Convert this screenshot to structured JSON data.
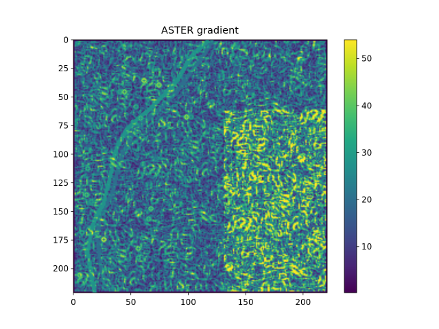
{
  "chart_data": {
    "type": "heatmap",
    "title": "ASTER gradient",
    "xlabel": "",
    "ylabel": "",
    "image_extent": {
      "x": [
        0,
        221
      ],
      "y": [
        221,
        0
      ]
    },
    "xlim": [
      0,
      221
    ],
    "ylim": [
      221,
      0
    ],
    "x_ticks": [
      0,
      50,
      100,
      150,
      200
    ],
    "y_ticks": [
      0,
      25,
      50,
      75,
      100,
      125,
      150,
      175,
      200
    ],
    "colormap": "viridis",
    "colorbar": {
      "min": 0.2,
      "max": 54,
      "ticks": [
        10,
        20,
        30,
        40,
        50
      ]
    },
    "grid": false,
    "features": {
      "river_main": [
        [
          116,
          1
        ],
        [
          104,
          12
        ],
        [
          96,
          24
        ],
        [
          90,
          35
        ],
        [
          78,
          48
        ],
        [
          66,
          60
        ],
        [
          54,
          70
        ],
        [
          46,
          78
        ],
        [
          38,
          92
        ],
        [
          34,
          105
        ],
        [
          32,
          118
        ],
        [
          28,
          132
        ],
        [
          26,
          142
        ],
        [
          20,
          152
        ],
        [
          16,
          162
        ],
        [
          14,
          172
        ],
        [
          12,
          185
        ],
        [
          14,
          198
        ],
        [
          16,
          210
        ],
        [
          18,
          221
        ]
      ],
      "river_branch": [
        [
          120,
          1
        ],
        [
          112,
          14
        ],
        [
          100,
          30
        ],
        [
          92,
          42
        ],
        [
          80,
          55
        ],
        [
          70,
          64
        ],
        [
          58,
          74
        ],
        [
          48,
          86
        ],
        [
          42,
          100
        ],
        [
          38,
          112
        ],
        [
          36,
          124
        ],
        [
          32,
          136
        ],
        [
          24,
          150
        ],
        [
          22,
          160
        ],
        [
          20,
          172
        ],
        [
          22,
          186
        ],
        [
          24,
          200
        ],
        [
          26,
          214
        ]
      ],
      "hot_spots": [
        {
          "x": 61,
          "y": 35,
          "v": 52
        },
        {
          "x": 44,
          "y": 45,
          "v": 48
        },
        {
          "x": 74,
          "y": 39,
          "v": 50
        },
        {
          "x": 98,
          "y": 67,
          "v": 50
        },
        {
          "x": 26,
          "y": 174,
          "v": 54
        },
        {
          "x": 56,
          "y": 182,
          "v": 46
        },
        {
          "x": 67,
          "y": 147,
          "v": 44
        },
        {
          "x": 58,
          "y": 68,
          "v": 40
        },
        {
          "x": 11,
          "y": 135,
          "v": 42
        },
        {
          "x": 5,
          "y": 205,
          "v": 46
        },
        {
          "x": 65,
          "y": 156,
          "v": 40
        },
        {
          "x": 12,
          "y": 112,
          "v": 38
        },
        {
          "x": 54,
          "y": 58,
          "v": 36
        },
        {
          "x": 102,
          "y": 67,
          "v": 34
        },
        {
          "x": 60,
          "y": 108,
          "v": 32
        },
        {
          "x": 15,
          "y": 141,
          "v": 34
        },
        {
          "x": 7,
          "y": 168,
          "v": 36
        },
        {
          "x": 71,
          "y": 104,
          "v": 28
        },
        {
          "x": 40,
          "y": 45,
          "v": 36
        },
        {
          "x": 56,
          "y": 190,
          "v": 38
        },
        {
          "x": 144,
          "y": 18,
          "v": 24
        }
      ],
      "rough_region": {
        "x": [
          130,
          221
        ],
        "y": [
          60,
          221
        ]
      }
    }
  }
}
